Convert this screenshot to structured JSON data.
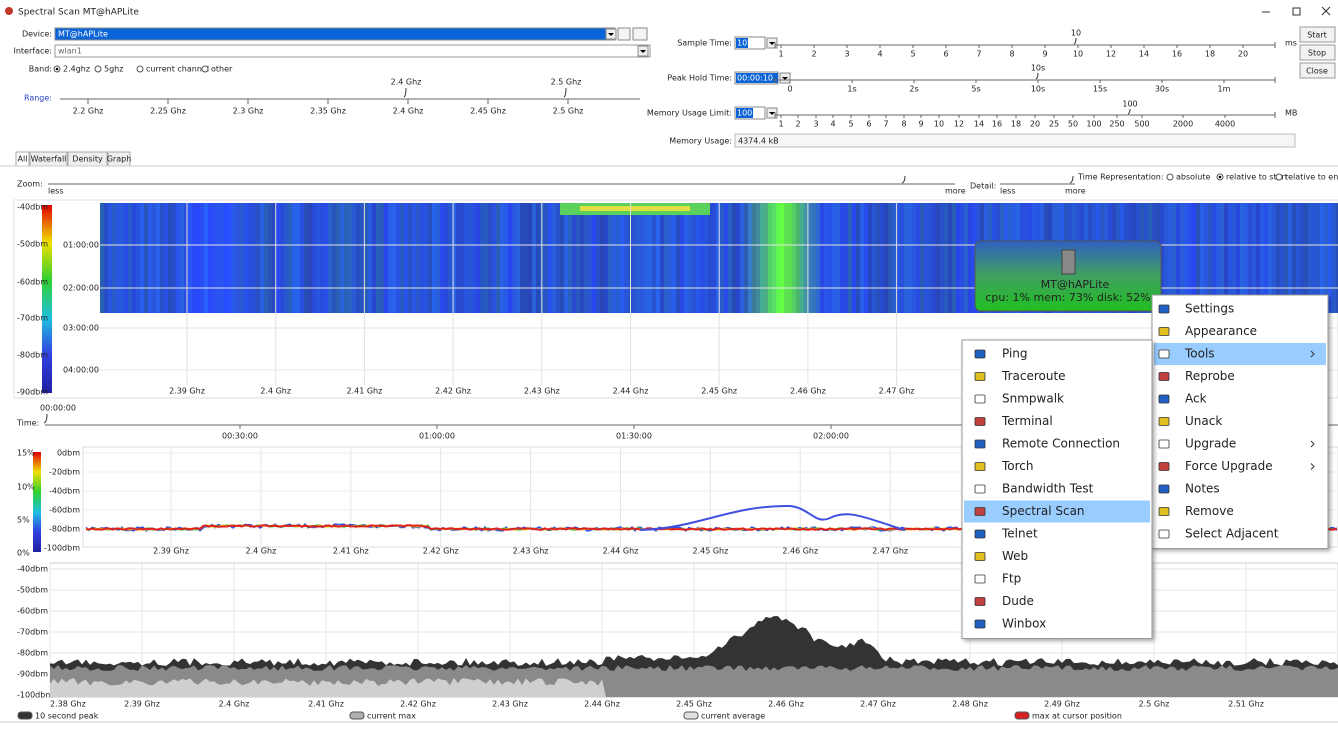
{
  "window": {
    "title": "Spectral Scan MT@hAPLite"
  },
  "controls": {
    "device": {
      "label": "Device:",
      "value": "MT@hAPLite"
    },
    "interface": {
      "label": "Interface:",
      "value": "wlan1"
    },
    "band": {
      "label": "Band:",
      "options": [
        "2.4ghz",
        "5ghz",
        "current channel",
        "other"
      ],
      "selected": 0
    },
    "range": {
      "label": "Range:",
      "markers": [
        "2.4 Ghz",
        "2.5 Ghz"
      ],
      "scale": [
        "2.2 Ghz",
        "2.25 Ghz",
        "2.3 Ghz",
        "2.35 Ghz",
        "2.4 Ghz",
        "2.45 Ghz",
        "2.5 Ghz"
      ]
    },
    "sample_time": {
      "label": "Sample Time:",
      "value": "10",
      "marker": "10",
      "scale": [
        "1",
        "2",
        "3",
        "4",
        "5",
        "6",
        "7",
        "8",
        "9",
        "10",
        "12",
        "14",
        "16",
        "18",
        "20"
      ],
      "unit": "ms"
    },
    "peak_hold_time": {
      "label": "Peak Hold Time:",
      "value": "00:00:10",
      "marker": "10s",
      "scale": [
        "0",
        "1s",
        "2s",
        "5s",
        "10s",
        "15s",
        "30s",
        "1m"
      ]
    },
    "memory_usage_limit": {
      "label": "Memory Usage Limit:",
      "value": "100",
      "marker": "100",
      "scale": [
        "1",
        "2",
        "3",
        "4",
        "5",
        "6",
        "7",
        "8",
        "9",
        "10",
        "12",
        "14",
        "16",
        "18",
        "20",
        "25",
        "50",
        "100",
        "250",
        "500",
        "2000",
        "4000"
      ],
      "unit": "MB"
    },
    "memory_usage": {
      "label": "Memory Usage:",
      "value": "4374.4 kB"
    },
    "buttons": [
      "Start",
      "Stop",
      "Close"
    ]
  },
  "tabs": [
    "All",
    "Waterfall",
    "Density",
    "Graph"
  ],
  "view_controls": {
    "zoom": {
      "label": "Zoom:",
      "less": "less",
      "more": "more"
    },
    "detail": {
      "label": "Detail:",
      "less": "less",
      "more": "more"
    },
    "time_representation": {
      "label": "Time Representation:",
      "options": [
        "absolute",
        "relative to start",
        "relative to end"
      ],
      "selected": 1
    }
  },
  "waterfall": {
    "dbm_labels": [
      "-40dbm",
      "-50dbm",
      "-60dbm",
      "-70dbm",
      "-80dbm",
      "-90dbm"
    ],
    "time_labels": [
      "01:00:00",
      "02:00:00",
      "03:00:00",
      "04:00:00"
    ],
    "freq_labels": [
      "2.39 Ghz",
      "2.4 Ghz",
      "2.41 Ghz",
      "2.42 Ghz",
      "2.43 Ghz",
      "2.44 Ghz",
      "2.45 Ghz",
      "2.46 Ghz",
      "2.47 Ghz"
    ]
  },
  "time_axis": {
    "label": "Time:",
    "start": "00:00:00",
    "labels": [
      "00:30:00",
      "01:00:00",
      "01:30:00",
      "02:00:00"
    ]
  },
  "density": {
    "percent_labels": [
      "15%",
      "10%",
      "5%",
      "0%"
    ],
    "dbm_labels": [
      "0dbm",
      "-20dbm",
      "-40dbm",
      "-60dbm",
      "-80dbm",
      "-100dbm"
    ],
    "freq_labels": [
      "2.39 Ghz",
      "2.4 Ghz",
      "2.41 Ghz",
      "2.42 Ghz",
      "2.43 Ghz",
      "2.44 Ghz",
      "2.45 Ghz",
      "2.46 Ghz",
      "2.47 Ghz"
    ]
  },
  "graph": {
    "dbm_labels": [
      "-40dbm",
      "-50dbm",
      "-60dbm",
      "-70dbm",
      "-80dbm",
      "-90dbm",
      "-100dbm"
    ],
    "freq_labels": [
      "2.38 Ghz",
      "2.39 Ghz",
      "2.4 Ghz",
      "2.41 Ghz",
      "2.42 Ghz",
      "2.43 Ghz",
      "2.44 Ghz",
      "2.45 Ghz",
      "2.46 Ghz",
      "2.47 Ghz",
      "2.48 Ghz",
      "2.49 Ghz",
      "2.5 Ghz",
      "2.51 Ghz"
    ],
    "legend": [
      {
        "name": "10 second peak",
        "color": "#333333"
      },
      {
        "name": "current max",
        "color": "#b0b0b0"
      },
      {
        "name": "current average",
        "color": "#e0e0e0"
      },
      {
        "name": "max at cursor position",
        "color": "#d62020"
      }
    ]
  },
  "context": {
    "device_tile": {
      "name": "MT@hAPLite",
      "stats": "cpu: 1% mem: 73% disk: 52%"
    },
    "menu": [
      {
        "label": "Settings"
      },
      {
        "label": "Appearance"
      },
      {
        "label": "Tools",
        "submenu": true,
        "highlighted": true
      },
      {
        "label": "Reprobe"
      },
      {
        "label": "Ack"
      },
      {
        "label": "Unack"
      },
      {
        "label": "Upgrade",
        "submenu": true
      },
      {
        "label": "Force Upgrade",
        "submenu": true
      },
      {
        "label": "Notes"
      },
      {
        "label": "Remove"
      },
      {
        "label": "Select Adjacent"
      }
    ],
    "tools_menu": [
      {
        "label": "Ping"
      },
      {
        "label": "Traceroute"
      },
      {
        "label": "Snmpwalk"
      },
      {
        "label": "Terminal"
      },
      {
        "label": "Remote Connection"
      },
      {
        "label": "Torch"
      },
      {
        "label": "Bandwidth Test"
      },
      {
        "label": "Spectral Scan",
        "highlighted": true
      },
      {
        "label": "Telnet"
      },
      {
        "label": "Web"
      },
      {
        "label": "Ftp"
      },
      {
        "label": "Dude"
      },
      {
        "label": "Winbox"
      }
    ]
  }
}
